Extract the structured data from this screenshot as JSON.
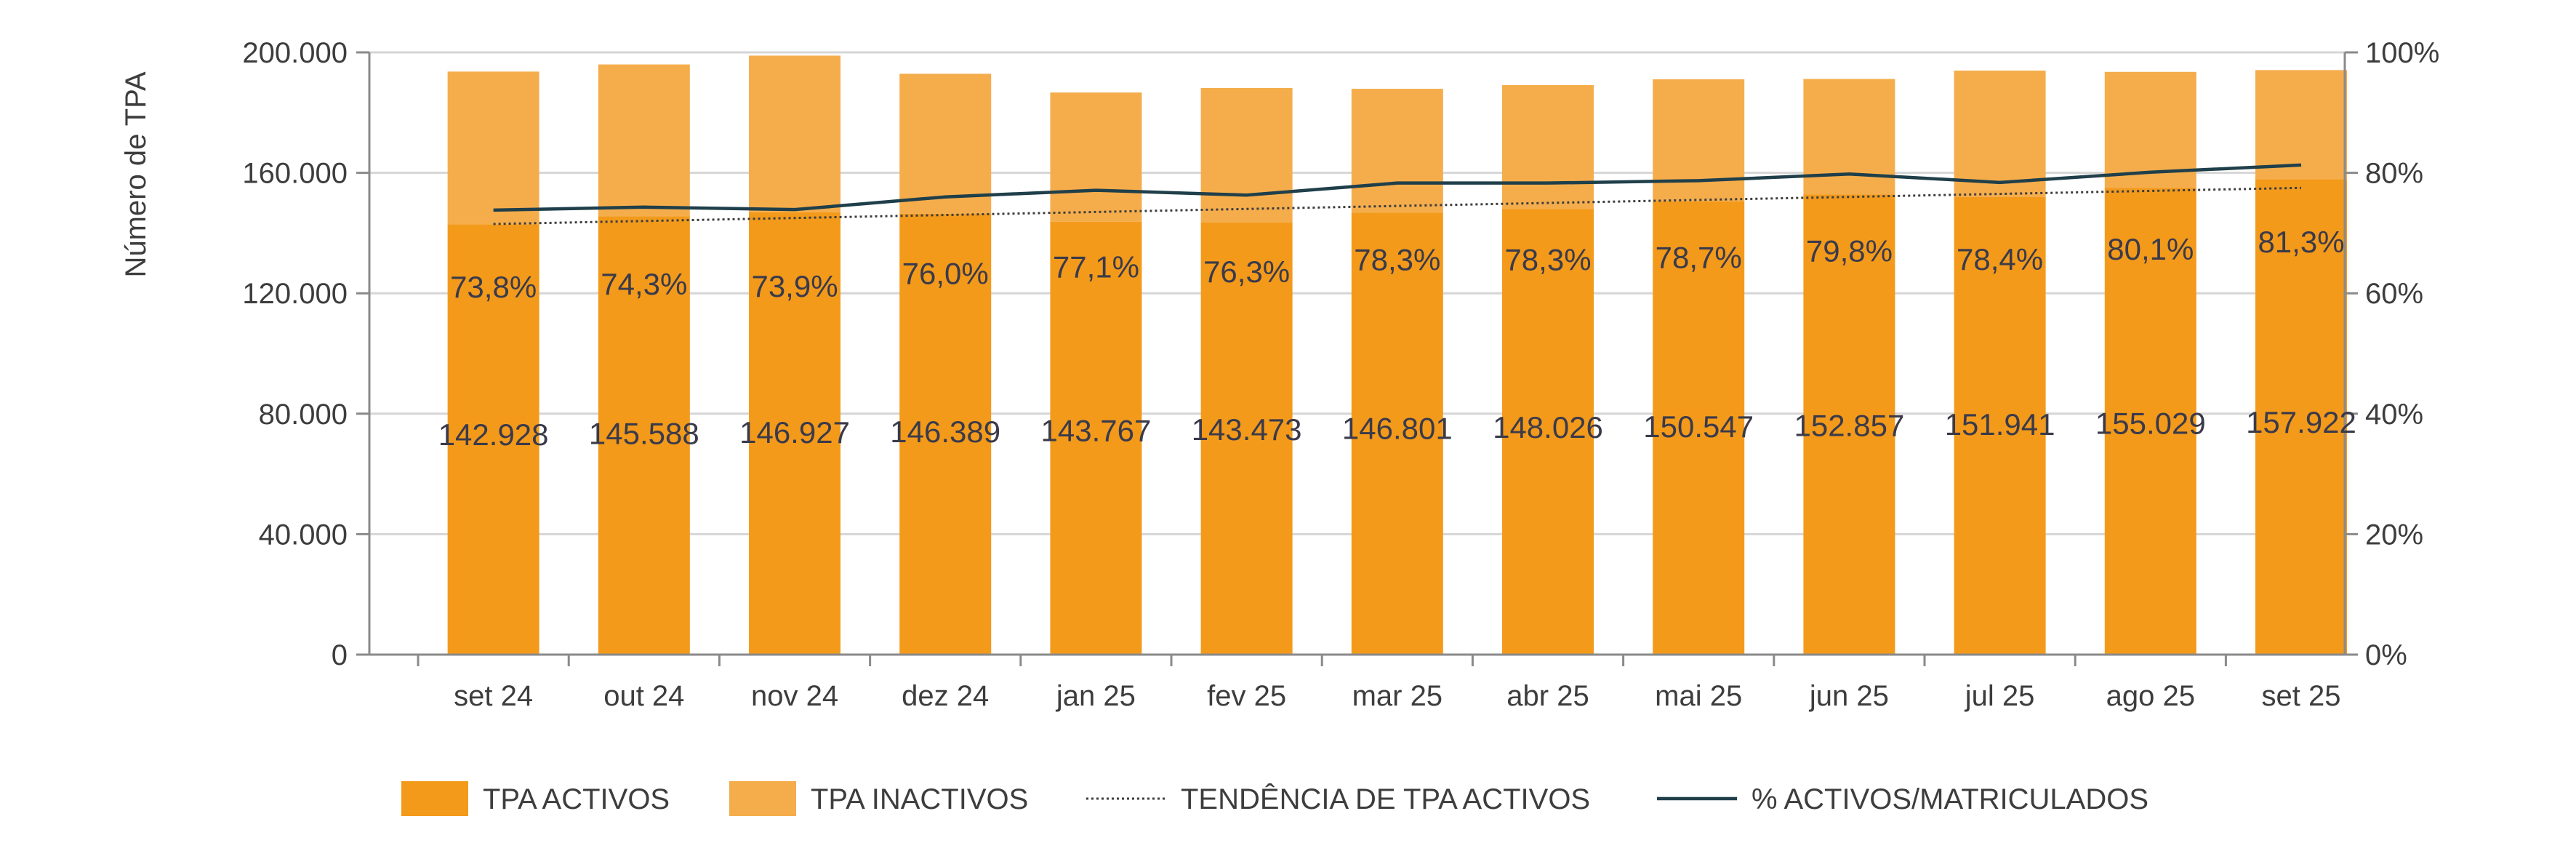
{
  "chart_data": {
    "type": "bar",
    "stacked": true,
    "categories": [
      "set 24",
      "out 24",
      "nov 24",
      "dez 24",
      "jan 25",
      "fev 25",
      "mar 25",
      "abr 25",
      "mai 25",
      "jun 25",
      "jul 25",
      "ago 25",
      "set 25"
    ],
    "series": [
      {
        "name": "TPA ACTIVOS",
        "type": "bar",
        "color": "#f39a1b",
        "values": [
          142928,
          145588,
          146927,
          146389,
          143767,
          143473,
          146801,
          148026,
          150547,
          152857,
          151941,
          155029,
          157922
        ],
        "labels": [
          "142.928",
          "145.588",
          "146.927",
          "146.389",
          "143.767",
          "143.473",
          "146.801",
          "148.026",
          "150.547",
          "152.857",
          "151.941",
          "155.029",
          "157.922"
        ]
      },
      {
        "name": "TPA INACTIVOS",
        "type": "bar",
        "color": "#f5ad4c",
        "values": [
          50700,
          50400,
          52000,
          46500,
          42900,
          44700,
          41100,
          41100,
          40500,
          38300,
          42000,
          38500,
          36200
        ]
      },
      {
        "name": "TENDÊNCIA DE TPA ACTIVOS",
        "type": "line",
        "style": "dotted",
        "color": "#3d3d3d",
        "axis": "y2",
        "values": [
          71.5,
          72.0,
          72.5,
          73.0,
          73.5,
          74.0,
          74.5,
          75.0,
          75.5,
          76.0,
          76.5,
          77.0,
          77.5
        ]
      },
      {
        "name": "% ACTIVOS/MATRICULADOS",
        "type": "line",
        "color": "#1f3f4a",
        "axis": "y2",
        "values": [
          73.8,
          74.3,
          73.9,
          76.0,
          77.1,
          76.3,
          78.3,
          78.3,
          78.7,
          79.8,
          78.4,
          80.1,
          81.3
        ],
        "labels": [
          "73,8%",
          "74,3%",
          "73,9%",
          "76,0%",
          "77,1%",
          "76,3%",
          "78,3%",
          "78,3%",
          "78,7%",
          "79,8%",
          "78,4%",
          "80,1%",
          "81,3%"
        ]
      }
    ],
    "ylabel": "Número de TPA",
    "ylim": [
      0,
      200000
    ],
    "yticks": [
      "0",
      "40.000",
      "80.000",
      "120.000",
      "160.000",
      "200.000"
    ],
    "y2lim": [
      0,
      100
    ],
    "y2ticks": [
      "0%",
      "20%",
      "40%",
      "60%",
      "80%",
      "100%"
    ],
    "grid": true,
    "legend_position": "bottom"
  },
  "legend": [
    {
      "label": "TPA ACTIVOS",
      "kind": "box",
      "color": "#f39a1b"
    },
    {
      "label": "TPA INACTIVOS",
      "kind": "box",
      "color": "#f5ad4c"
    },
    {
      "label": "TENDÊNCIA DE TPA ACTIVOS",
      "kind": "dotted",
      "color": "#3d3d3d"
    },
    {
      "label": "% ACTIVOS/MATRICULADOS",
      "kind": "line",
      "color": "#1f3f4a"
    }
  ]
}
